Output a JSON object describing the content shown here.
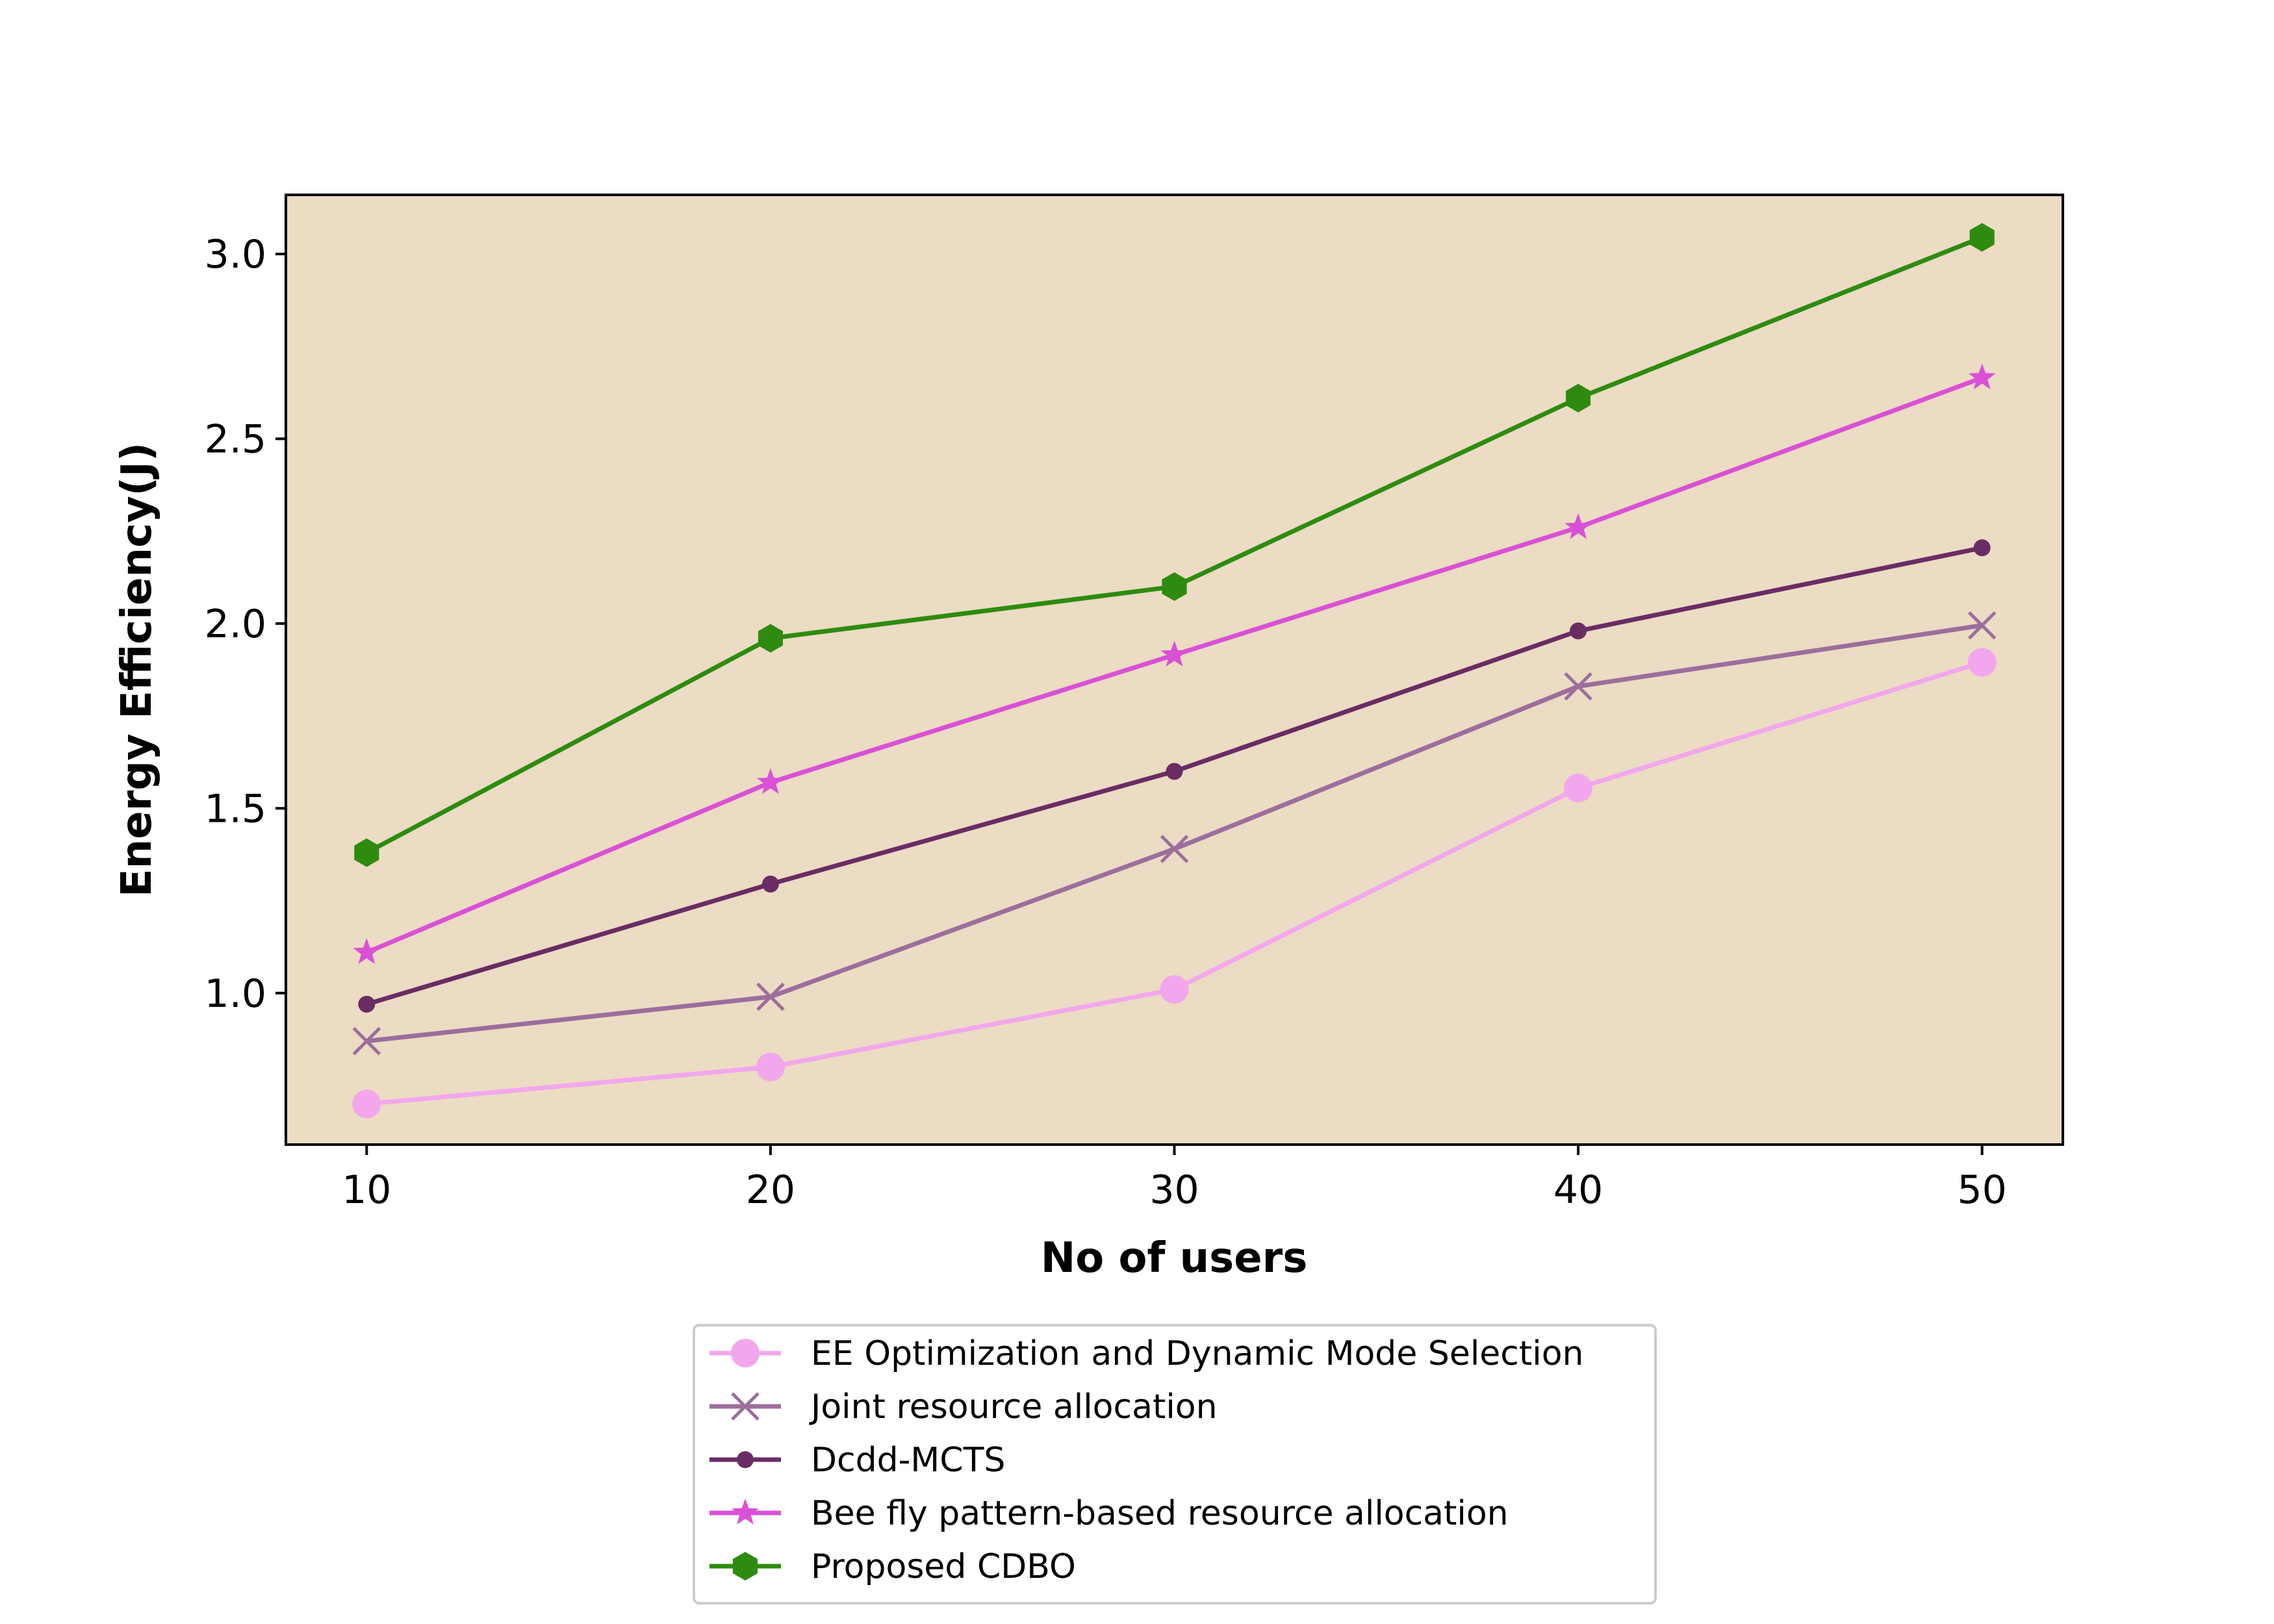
{
  "chart_data": {
    "type": "line",
    "title": "",
    "xlabel": "No of users",
    "ylabel": "Energy Efficiency(J)",
    "x": [
      10,
      20,
      30,
      40,
      50
    ],
    "xlim": [
      8,
      52
    ],
    "ylim": [
      0.59,
      3.16
    ],
    "xticks": [
      "10",
      "20",
      "30",
      "40",
      "50"
    ],
    "yticks": [
      "1.0",
      "1.5",
      "2.0",
      "2.5",
      "3.0"
    ],
    "plot_background": "#EBDCC3",
    "grid": false,
    "legend_position": "bottom-center",
    "series": [
      {
        "name": "EE Optimization and Dynamic Mode Selection",
        "values": [
          0.7,
          0.8,
          1.01,
          1.555,
          1.895
        ],
        "color": "#F2A7EC",
        "marker": "circle"
      },
      {
        "name": "Joint resource allocation",
        "values": [
          0.87,
          0.99,
          1.39,
          1.83,
          1.995
        ],
        "color": "#9C6E9C",
        "marker": "x"
      },
      {
        "name": "Dcdd-MCTS",
        "values": [
          0.97,
          1.295,
          1.6,
          1.98,
          2.205
        ],
        "color": "#6A2C64",
        "marker": "dot"
      },
      {
        "name": "Bee fly pattern-based resource allocation",
        "values": [
          1.11,
          1.57,
          1.915,
          2.26,
          2.665
        ],
        "color": "#D951D5",
        "marker": "star"
      },
      {
        "name": "Proposed CDBO",
        "values": [
          1.38,
          1.96,
          2.1,
          2.61,
          3.045
        ],
        "color": "#2E8B10",
        "marker": "hexagon"
      }
    ]
  }
}
